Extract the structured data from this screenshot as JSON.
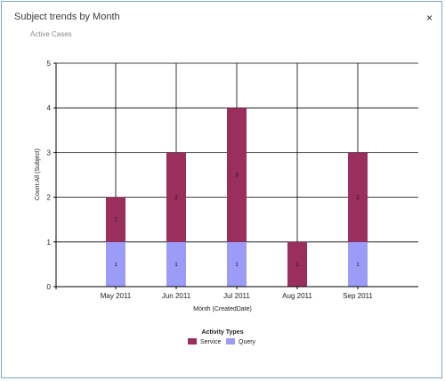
{
  "dialog": {
    "title": "Subject trends by Month",
    "subtitle": "Active Cases",
    "close_glyph": "×"
  },
  "colors": {
    "service": "#9a2f5e",
    "query": "#9b9cf7",
    "grid": "#000000",
    "border": "#7aa6c9"
  },
  "chart_data": {
    "type": "bar",
    "stacked": true,
    "categories": [
      "May 2011",
      "Jun 2011",
      "Jul 2011",
      "Aug 2011",
      "Sep 2011"
    ],
    "series": [
      {
        "name": "Query",
        "values": [
          1,
          1,
          1,
          0,
          1
        ],
        "labels": [
          "1",
          "1",
          "1",
          "",
          "1"
        ]
      },
      {
        "name": "Service",
        "values": [
          1,
          2,
          3,
          1,
          2
        ],
        "labels": [
          "1",
          "2",
          "3",
          "1",
          "2"
        ]
      }
    ],
    "xlabel": "Month (CreatedDate)",
    "ylabel": "Count:All (Subject)",
    "ylim": [
      0,
      5
    ],
    "yticks": [
      "0",
      "1",
      "2",
      "3",
      "4",
      "5"
    ],
    "grid": true,
    "legend": {
      "title": "Activity Types",
      "placement": "bottom-center",
      "entries": [
        "Service",
        "Query"
      ]
    }
  }
}
